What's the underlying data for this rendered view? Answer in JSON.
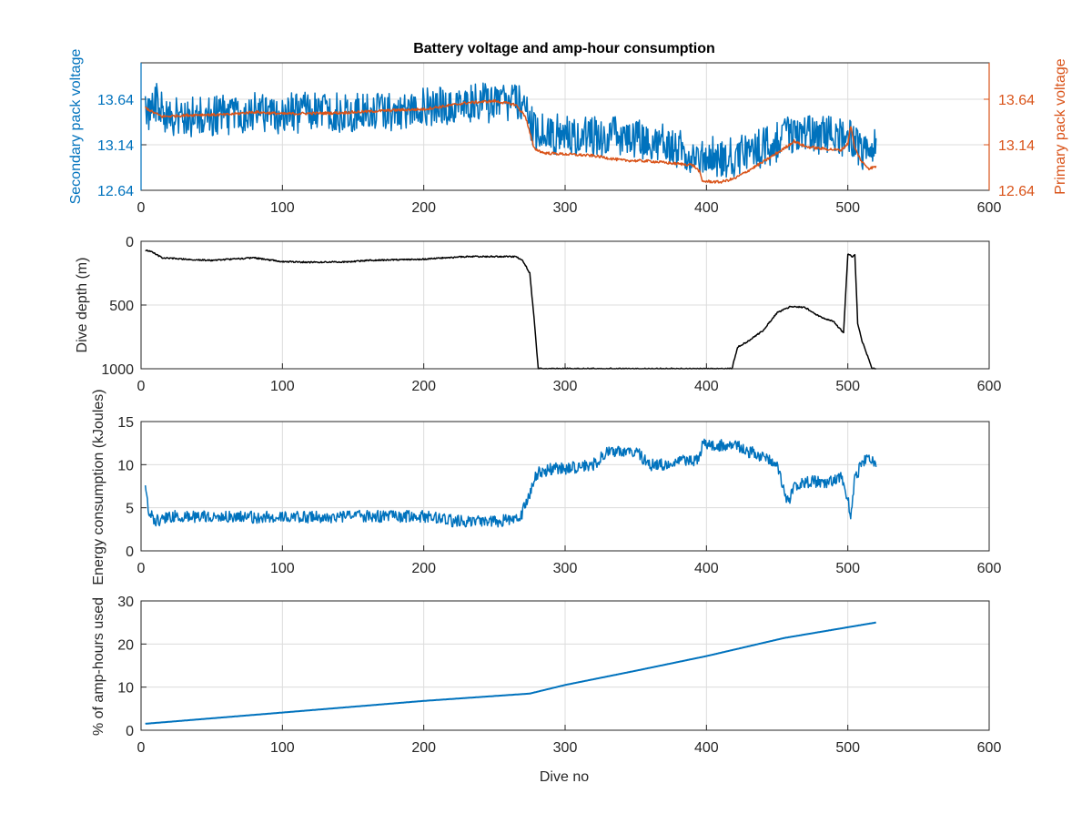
{
  "chart_data": [
    {
      "type": "line",
      "title": "Battery voltage and amp-hour consumption",
      "xlabel": "",
      "ylabel_left": "Secondary pack voltage",
      "ylabel_right": "Primary pack voltage",
      "xlim": [
        0,
        600
      ],
      "ylim": [
        12.64,
        14.04
      ],
      "yticks": [
        "12.64",
        "13.14",
        "13.64"
      ],
      "xticks": [
        "0",
        "100",
        "200",
        "300",
        "400",
        "500",
        "600"
      ],
      "grid": true,
      "series": [
        {
          "color": "#0072BD",
          "axis": "left",
          "noise": 0.16,
          "points": [
            [
              3,
              13.45
            ],
            [
              10,
              13.62
            ],
            [
              20,
              13.45
            ],
            [
              40,
              13.44
            ],
            [
              60,
              13.47
            ],
            [
              80,
              13.5
            ],
            [
              100,
              13.48
            ],
            [
              120,
              13.5
            ],
            [
              140,
              13.49
            ],
            [
              160,
              13.49
            ],
            [
              180,
              13.52
            ],
            [
              200,
              13.54
            ],
            [
              220,
              13.57
            ],
            [
              240,
              13.6
            ],
            [
              260,
              13.6
            ],
            [
              268,
              13.58
            ],
            [
              272,
              13.5
            ],
            [
              280,
              13.27
            ],
            [
              300,
              13.25
            ],
            [
              320,
              13.23
            ],
            [
              340,
              13.23
            ],
            [
              360,
              13.2
            ],
            [
              380,
              13.1
            ],
            [
              395,
              13.02
            ],
            [
              400,
              13.02
            ],
            [
              420,
              13.0
            ],
            [
              440,
              13.1
            ],
            [
              460,
              13.25
            ],
            [
              480,
              13.24
            ],
            [
              495,
              13.22
            ],
            [
              500,
              13.3
            ],
            [
              505,
              13.2
            ],
            [
              510,
              13.08
            ],
            [
              520,
              13.1
            ]
          ]
        },
        {
          "color": "#D95319",
          "axis": "right",
          "noise": 0.015,
          "points": [
            [
              3,
              13.55
            ],
            [
              8,
              13.5
            ],
            [
              15,
              13.45
            ],
            [
              40,
              13.47
            ],
            [
              60,
              13.47
            ],
            [
              80,
              13.5
            ],
            [
              100,
              13.48
            ],
            [
              140,
              13.49
            ],
            [
              180,
              13.52
            ],
            [
              200,
              13.53
            ],
            [
              230,
              13.6
            ],
            [
              250,
              13.62
            ],
            [
              265,
              13.58
            ],
            [
              272,
              13.45
            ],
            [
              278,
              13.1
            ],
            [
              285,
              13.05
            ],
            [
              320,
              13.02
            ],
            [
              340,
              12.97
            ],
            [
              360,
              12.96
            ],
            [
              380,
              12.93
            ],
            [
              390,
              12.92
            ],
            [
              395,
              12.85
            ],
            [
              397,
              12.74
            ],
            [
              410,
              12.73
            ],
            [
              420,
              12.77
            ],
            [
              440,
              12.95
            ],
            [
              455,
              13.1
            ],
            [
              462,
              13.18
            ],
            [
              470,
              13.12
            ],
            [
              480,
              13.1
            ],
            [
              495,
              13.08
            ],
            [
              500,
              13.15
            ],
            [
              502,
              13.35
            ],
            [
              505,
              13.1
            ],
            [
              510,
              12.95
            ],
            [
              515,
              12.88
            ],
            [
              520,
              12.9
            ]
          ]
        }
      ]
    },
    {
      "type": "line",
      "ylabel": "Dive depth (m)",
      "xlim": [
        0,
        600
      ],
      "ylim": [
        0,
        1000
      ],
      "y_reversed": true,
      "yticks": [
        "0",
        "500",
        "1000"
      ],
      "xticks": [
        "0",
        "100",
        "200",
        "300",
        "400",
        "500",
        "600"
      ],
      "grid": true,
      "series": [
        {
          "color": "#000000",
          "noise": 4,
          "points": [
            [
              3,
              70
            ],
            [
              8,
              85
            ],
            [
              15,
              130
            ],
            [
              30,
              140
            ],
            [
              50,
              150
            ],
            [
              80,
              130
            ],
            [
              100,
              160
            ],
            [
              120,
              165
            ],
            [
              150,
              160
            ],
            [
              160,
              150
            ],
            [
              200,
              140
            ],
            [
              230,
              120
            ],
            [
              250,
              120
            ],
            [
              265,
              120
            ],
            [
              270,
              150
            ],
            [
              275,
              250
            ],
            [
              278,
              600
            ],
            [
              281,
              1000
            ],
            [
              300,
              1000
            ],
            [
              350,
              1000
            ],
            [
              400,
              1000
            ],
            [
              418,
              1000
            ],
            [
              422,
              830
            ],
            [
              430,
              780
            ],
            [
              440,
              700
            ],
            [
              450,
              560
            ],
            [
              460,
              510
            ],
            [
              470,
              520
            ],
            [
              480,
              590
            ],
            [
              490,
              630
            ],
            [
              497,
              720
            ],
            [
              500,
              100
            ],
            [
              503,
              120
            ],
            [
              505,
              110
            ],
            [
              507,
              650
            ],
            [
              510,
              780
            ],
            [
              514,
              900
            ],
            [
              517,
              1000
            ],
            [
              520,
              1000
            ]
          ]
        }
      ]
    },
    {
      "type": "line",
      "ylabel": "Energy consumption (kJoules)",
      "xlim": [
        0,
        600
      ],
      "ylim": [
        0,
        15
      ],
      "yticks": [
        "0",
        "5",
        "10",
        "15"
      ],
      "xticks": [
        "0",
        "100",
        "200",
        "300",
        "400",
        "500",
        "600"
      ],
      "grid": true,
      "series": [
        {
          "color": "#0072BD",
          "noise": 0.5,
          "points": [
            [
              3,
              8
            ],
            [
              5,
              5
            ],
            [
              10,
              3.5
            ],
            [
              15,
              3.5
            ],
            [
              20,
              4
            ],
            [
              40,
              4
            ],
            [
              60,
              3.9
            ],
            [
              80,
              3.9
            ],
            [
              100,
              3.9
            ],
            [
              120,
              3.9
            ],
            [
              150,
              4
            ],
            [
              200,
              4
            ],
            [
              220,
              3.5
            ],
            [
              250,
              3.4
            ],
            [
              265,
              3.6
            ],
            [
              268,
              3.8
            ],
            [
              275,
              6.5
            ],
            [
              280,
              9
            ],
            [
              290,
              9.5
            ],
            [
              300,
              9.5
            ],
            [
              320,
              10
            ],
            [
              330,
              11.5
            ],
            [
              350,
              11.5
            ],
            [
              360,
              10
            ],
            [
              370,
              10
            ],
            [
              380,
              10.5
            ],
            [
              395,
              10.5
            ],
            [
              397,
              12.5
            ],
            [
              410,
              12.2
            ],
            [
              420,
              12.3
            ],
            [
              430,
              11.5
            ],
            [
              440,
              11
            ],
            [
              450,
              10
            ],
            [
              455,
              7
            ],
            [
              458,
              5.5
            ],
            [
              462,
              7.5
            ],
            [
              470,
              8
            ],
            [
              480,
              8
            ],
            [
              490,
              8
            ],
            [
              495,
              8.5
            ],
            [
              500,
              6
            ],
            [
              502,
              4
            ],
            [
              505,
              8.5
            ],
            [
              510,
              10
            ],
            [
              515,
              11
            ],
            [
              520,
              10
            ]
          ]
        }
      ]
    },
    {
      "type": "line",
      "ylabel": "% of amp-hours used",
      "xlabel": "Dive no",
      "xlim": [
        0,
        600
      ],
      "ylim": [
        0,
        30
      ],
      "yticks": [
        "0",
        "10",
        "20",
        "30"
      ],
      "xticks": [
        "0",
        "100",
        "200",
        "300",
        "400",
        "500",
        "600"
      ],
      "grid": true,
      "series": [
        {
          "color": "#0072BD",
          "noise": 0,
          "points": [
            [
              3,
              1.5
            ],
            [
              100,
              4.1
            ],
            [
              200,
              6.8
            ],
            [
              275,
              8.5
            ],
            [
              300,
              10.5
            ],
            [
              350,
              13.8
            ],
            [
              400,
              17.2
            ],
            [
              455,
              21.4
            ],
            [
              520,
              25
            ]
          ]
        }
      ]
    }
  ]
}
